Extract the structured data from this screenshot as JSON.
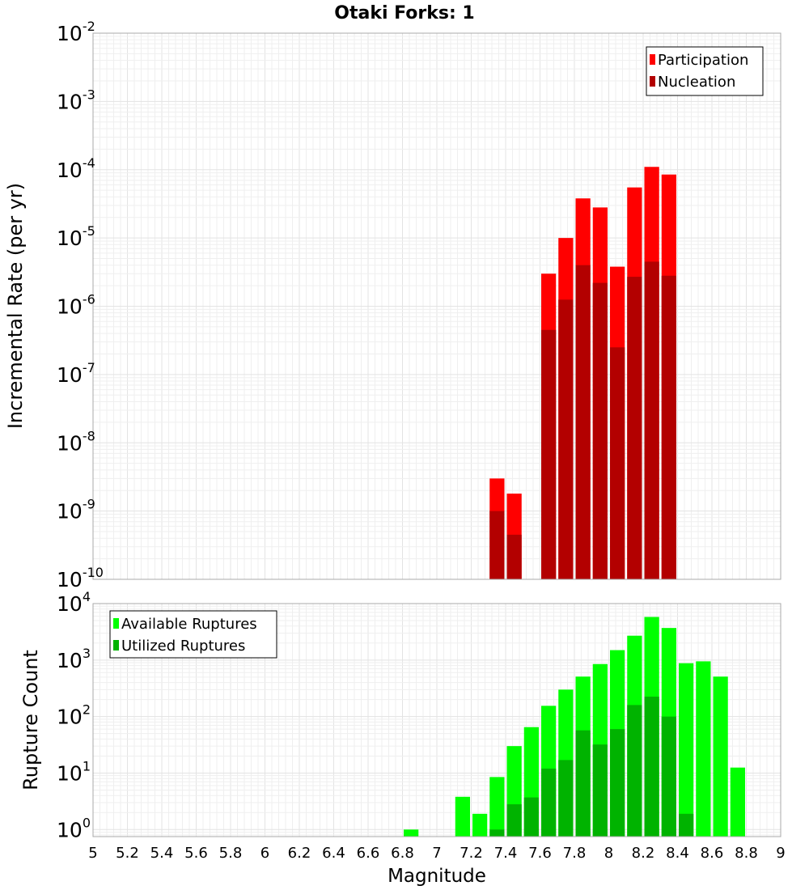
{
  "title": "Otaki Forks: 1",
  "xlabel": "Magnitude",
  "x_ticks": [
    "5",
    "5.2",
    "5.4",
    "5.6",
    "5.8",
    "6",
    "6.2",
    "6.4",
    "6.6",
    "6.8",
    "7",
    "7.2",
    "7.4",
    "7.6",
    "7.8",
    "8",
    "8.2",
    "8.4",
    "8.6",
    "8.8",
    "9"
  ],
  "chart_data": [
    {
      "type": "bar",
      "scale": "log",
      "xlabel": "",
      "ylabel": "Incremental Rate (per yr)",
      "xlim": [
        5,
        9
      ],
      "ylim": [
        1e-10,
        0.01
      ],
      "bin_width": 0.1,
      "y_ticks": [
        {
          "base": "10",
          "exp": "-2"
        },
        {
          "base": "10",
          "exp": "-3"
        },
        {
          "base": "10",
          "exp": "-4"
        },
        {
          "base": "10",
          "exp": "-5"
        },
        {
          "base": "10",
          "exp": "-6"
        },
        {
          "base": "10",
          "exp": "-7"
        },
        {
          "base": "10",
          "exp": "-8"
        },
        {
          "base": "10",
          "exp": "-9"
        },
        {
          "base": "10",
          "exp": "-10"
        }
      ],
      "legend_position": "top-right",
      "series": [
        {
          "name": "Participation",
          "color": "#ff0000",
          "points": [
            [
              7.35,
              3e-09
            ],
            [
              7.45,
              1.8e-09
            ],
            [
              7.65,
              3e-06
            ],
            [
              7.75,
              1e-05
            ],
            [
              7.85,
              3.8e-05
            ],
            [
              7.95,
              2.8e-05
            ],
            [
              8.05,
              3.8e-06
            ],
            [
              8.15,
              5.5e-05
            ],
            [
              8.25,
              0.00011
            ],
            [
              8.35,
              8.5e-05
            ]
          ]
        },
        {
          "name": "Nucleation",
          "color": "#b30000",
          "points": [
            [
              7.35,
              1e-09
            ],
            [
              7.45,
              4.5e-10
            ],
            [
              7.65,
              4.5e-07
            ],
            [
              7.75,
              1.25e-06
            ],
            [
              7.85,
              4e-06
            ],
            [
              7.95,
              2.2e-06
            ],
            [
              8.05,
              2.5e-07
            ],
            [
              8.15,
              2.7e-06
            ],
            [
              8.25,
              4.5e-06
            ],
            [
              8.35,
              2.8e-06
            ]
          ]
        }
      ]
    },
    {
      "type": "bar",
      "scale": "log",
      "xlabel": "Magnitude",
      "ylabel": "Rupture Count",
      "xlim": [
        5,
        9
      ],
      "ylim": [
        0.75,
        10000
      ],
      "bin_width": 0.1,
      "y_ticks": [
        {
          "base": "10",
          "exp": "4"
        },
        {
          "base": "10",
          "exp": "3"
        },
        {
          "base": "10",
          "exp": "2"
        },
        {
          "base": "10",
          "exp": "1"
        },
        {
          "base": "10",
          "exp": "0"
        }
      ],
      "legend_position": "top-left",
      "series": [
        {
          "name": "Available Ruptures",
          "color": "#00ff00",
          "points": [
            [
              6.85,
              1
            ],
            [
              7.15,
              3.8
            ],
            [
              7.25,
              1.9
            ],
            [
              7.35,
              8.5
            ],
            [
              7.45,
              30
            ],
            [
              7.55,
              65
            ],
            [
              7.65,
              155
            ],
            [
              7.75,
              300
            ],
            [
              7.85,
              510
            ],
            [
              7.95,
              850
            ],
            [
              8.05,
              1500
            ],
            [
              8.15,
              2700
            ],
            [
              8.25,
              5800
            ],
            [
              8.35,
              3700
            ],
            [
              8.45,
              880
            ],
            [
              8.55,
              950
            ],
            [
              8.65,
              510
            ],
            [
              8.75,
              12.5
            ]
          ]
        },
        {
          "name": "Utilized Ruptures",
          "color": "#00b300",
          "points": [
            [
              7.35,
              1
            ],
            [
              7.45,
              2.8
            ],
            [
              7.55,
              3.7
            ],
            [
              7.65,
              12
            ],
            [
              7.75,
              17
            ],
            [
              7.85,
              57
            ],
            [
              7.95,
              32
            ],
            [
              8.05,
              60
            ],
            [
              8.15,
              160
            ],
            [
              8.25,
              225
            ],
            [
              8.35,
              100
            ],
            [
              8.45,
              1.9
            ]
          ]
        }
      ]
    }
  ]
}
